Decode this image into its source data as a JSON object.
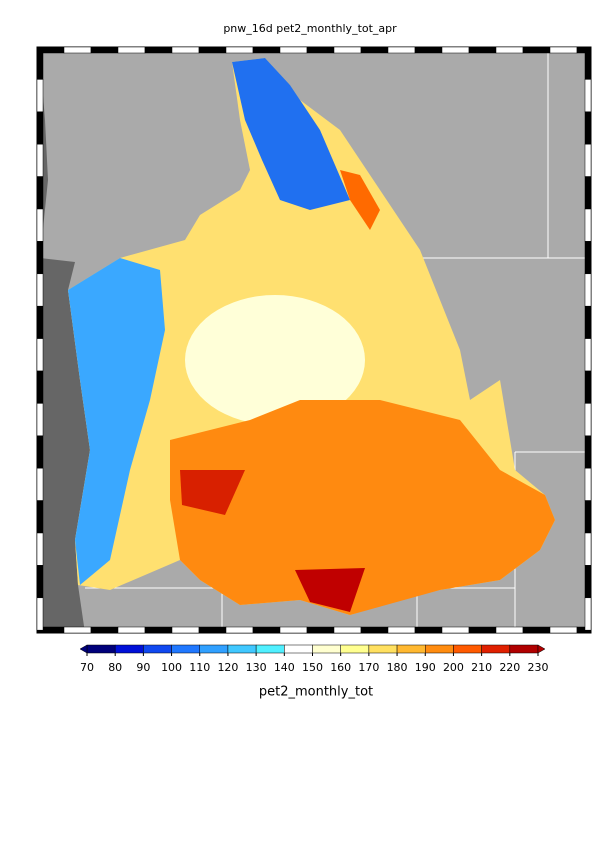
{
  "title": "pnw_16d pet2_monthly_tot_apr",
  "colorbar": {
    "label": "pet2_monthly_tot",
    "ticks": [
      70,
      80,
      90,
      100,
      110,
      120,
      130,
      140,
      150,
      160,
      170,
      180,
      190,
      200,
      210,
      220,
      230
    ],
    "colors": [
      "#00007a",
      "#0010d8",
      "#1048f0",
      "#2078ff",
      "#30a0ff",
      "#40c8ff",
      "#50f0ff",
      "#ffffff",
      "#ffffd0",
      "#ffff90",
      "#ffe060",
      "#ffb830",
      "#ff8c10",
      "#ff5a00",
      "#e02000",
      "#b00000"
    ]
  }
}
